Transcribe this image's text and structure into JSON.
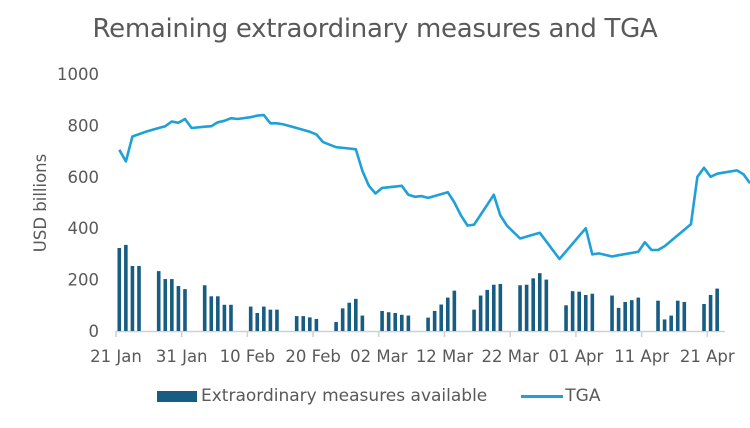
{
  "chart_data": {
    "type": "bar+line",
    "title": "Remaining extraordinary measures and TGA",
    "xlabel": "",
    "ylabel": "USD billions",
    "ylim": [
      0,
      1000
    ],
    "yticks": [
      "0",
      "200",
      "400",
      "600",
      "800",
      "1000"
    ],
    "ytick_values": [
      0,
      200,
      400,
      600,
      800,
      1000
    ],
    "x_start_label": "21 Jan",
    "xlim_days": [
      0,
      92.5
    ],
    "xticks": [
      {
        "day": 0,
        "label": "21 Jan"
      },
      {
        "day": 10,
        "label": "31 Jan"
      },
      {
        "day": 20,
        "label": "10 Feb"
      },
      {
        "day": 30,
        "label": "20 Feb"
      },
      {
        "day": 40,
        "label": "02 Mar"
      },
      {
        "day": 50,
        "label": "12 Mar"
      },
      {
        "day": 60,
        "label": "22 Mar"
      },
      {
        "day": 70,
        "label": "01 Apr"
      },
      {
        "day": 80,
        "label": "11 Apr"
      },
      {
        "day": 90,
        "label": "21 Apr"
      }
    ],
    "grid": false,
    "legend_position": "bottom",
    "colors": {
      "bars": "#175c82",
      "line": "#1fa0d8",
      "axis": "#d0d0d0"
    },
    "series": [
      {
        "name": "Extraordinary measures available",
        "type": "bar",
        "days": [
          0.5,
          1.5,
          2.5,
          3.5,
          6.5,
          7.5,
          8.5,
          9.5,
          10.5,
          13.5,
          14.5,
          15.5,
          16.5,
          17.5,
          20.5,
          21.5,
          22.5,
          23.5,
          24.5,
          27.5,
          28.5,
          29.5,
          30.5,
          33.5,
          34.5,
          35.5,
          36.5,
          37.5,
          40.5,
          41.5,
          42.5,
          43.5,
          44.5,
          47.5,
          48.5,
          49.5,
          50.5,
          51.5,
          54.5,
          55.5,
          56.5,
          57.5,
          58.5,
          61.5,
          62.5,
          63.5,
          64.5,
          65.5,
          68.5,
          69.5,
          70.5,
          71.5,
          72.5,
          75.5,
          76.5,
          77.5,
          78.5,
          79.5,
          82.5,
          83.5,
          84.5,
          85.5,
          86.5,
          89.5,
          90.5,
          91.5
        ],
        "values": [
          323,
          335,
          253,
          253,
          233,
          202,
          202,
          175,
          163,
          178,
          135,
          135,
          102,
          102,
          95,
          70,
          95,
          83,
          83,
          58,
          58,
          53,
          47,
          35,
          88,
          110,
          125,
          60,
          78,
          73,
          70,
          63,
          60,
          52,
          78,
          103,
          130,
          157,
          83,
          138,
          160,
          180,
          183,
          178,
          180,
          205,
          225,
          200,
          100,
          155,
          153,
          140,
          145,
          138,
          90,
          113,
          120,
          130,
          118,
          45,
          60,
          118,
          113,
          105,
          140,
          165
        ]
      },
      {
        "name": "TGA",
        "type": "line",
        "points": [
          [
            0.5,
            705
          ],
          [
            1.5,
            660
          ],
          [
            2.5,
            757
          ],
          [
            4.5,
            775
          ],
          [
            6.5,
            790
          ],
          [
            7.5,
            797
          ],
          [
            8.5,
            815
          ],
          [
            9.5,
            810
          ],
          [
            10.5,
            825
          ],
          [
            11.5,
            790
          ],
          [
            13.5,
            795
          ],
          [
            14.5,
            797
          ],
          [
            15.5,
            812
          ],
          [
            16.5,
            818
          ],
          [
            17.5,
            828
          ],
          [
            18.5,
            825
          ],
          [
            20.5,
            832
          ],
          [
            21.5,
            838
          ],
          [
            22.5,
            840
          ],
          [
            23.5,
            808
          ],
          [
            24.5,
            808
          ],
          [
            25.5,
            804
          ],
          [
            27.5,
            790
          ],
          [
            29.5,
            775
          ],
          [
            30.5,
            765
          ],
          [
            31.5,
            735
          ],
          [
            33.5,
            715
          ],
          [
            35.5,
            710
          ],
          [
            36.5,
            707
          ],
          [
            37.5,
            623
          ],
          [
            38.5,
            565
          ],
          [
            39.5,
            535
          ],
          [
            40.5,
            557
          ],
          [
            42.5,
            562
          ],
          [
            43.5,
            565
          ],
          [
            44.5,
            530
          ],
          [
            45.5,
            522
          ],
          [
            46.5,
            525
          ],
          [
            47.5,
            518
          ],
          [
            50.5,
            540
          ],
          [
            51.5,
            500
          ],
          [
            52.5,
            450
          ],
          [
            53.5,
            410
          ],
          [
            54.5,
            414
          ],
          [
            57.5,
            530
          ],
          [
            58.5,
            450
          ],
          [
            59.5,
            410
          ],
          [
            61.5,
            360
          ],
          [
            64.5,
            382
          ],
          [
            67.5,
            280
          ],
          [
            71.5,
            400
          ],
          [
            72.5,
            298
          ],
          [
            73.5,
            302
          ],
          [
            75.5,
            290
          ],
          [
            76.5,
            295
          ],
          [
            79.5,
            308
          ],
          [
            80.5,
            345
          ],
          [
            81.5,
            315
          ],
          [
            82.5,
            315
          ],
          [
            83.5,
            330
          ],
          [
            87.5,
            415
          ],
          [
            88.5,
            600
          ],
          [
            89.5,
            635
          ],
          [
            90.5,
            600
          ],
          [
            91.5,
            612
          ],
          [
            94.5,
            625
          ],
          [
            95.5,
            610
          ],
          [
            96.5,
            575
          ]
        ]
      }
    ]
  },
  "legend": {
    "bars_label": "Extraordinary measures available",
    "line_label": "TGA"
  }
}
